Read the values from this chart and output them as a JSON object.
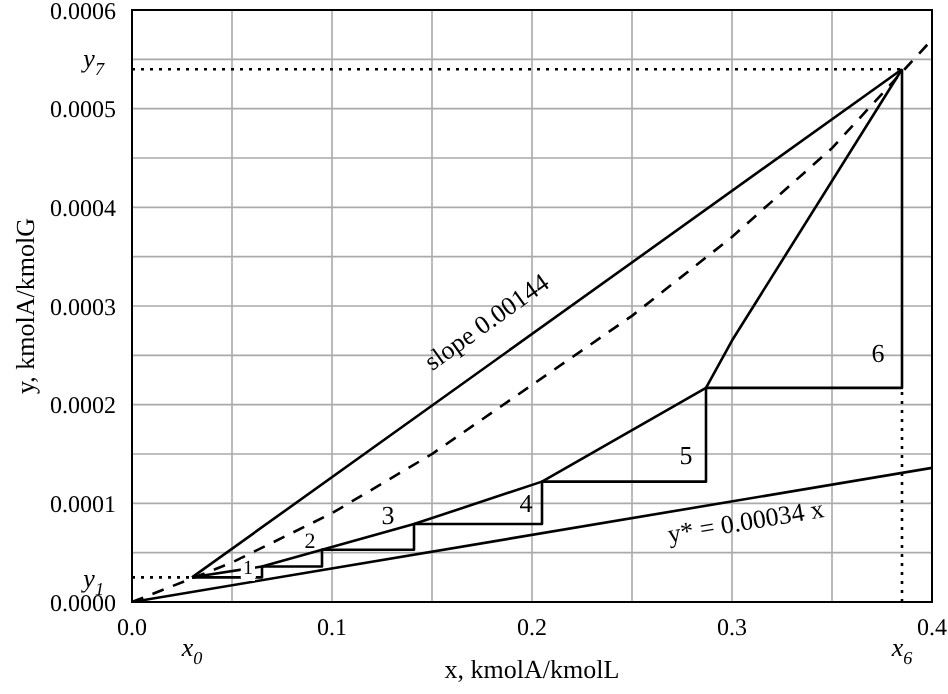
{
  "chart_data": {
    "type": "line",
    "xlabel": "x, kmolA/kmolL",
    "ylabel": "y, kmolA/kmolG",
    "xlim": [
      0,
      0.4
    ],
    "ylim": [
      0,
      0.0006
    ],
    "xticks": [
      {
        "value": 0,
        "label": "0.0"
      },
      {
        "value": 0.05,
        "label": null
      },
      {
        "value": 0.1,
        "label": "0.1"
      },
      {
        "value": 0.15,
        "label": null
      },
      {
        "value": 0.2,
        "label": "0.2"
      },
      {
        "value": 0.25,
        "label": null
      },
      {
        "value": 0.3,
        "label": "0.3"
      },
      {
        "value": 0.35,
        "label": null
      },
      {
        "value": 0.4,
        "label": "0.4"
      }
    ],
    "yticks": [
      {
        "value": 0,
        "label": "0.0000"
      },
      {
        "value": 5e-05,
        "label": null
      },
      {
        "value": 0.0001,
        "label": "0.0001"
      },
      {
        "value": 0.00015,
        "label": null
      },
      {
        "value": 0.0002,
        "label": "0.0002"
      },
      {
        "value": 0.00025,
        "label": null
      },
      {
        "value": 0.0003,
        "label": "0.0003"
      },
      {
        "value": 0.00035,
        "label": null
      },
      {
        "value": 0.0004,
        "label": "0.0004"
      },
      {
        "value": 0.00045,
        "label": null
      },
      {
        "value": 0.0005,
        "label": "0.0005"
      },
      {
        "value": 0.00055,
        "label": null
      },
      {
        "value": 0.0006,
        "label": "0.0006"
      }
    ],
    "grid": true,
    "series": [
      {
        "color": "#000000",
        "line_style": "solid",
        "x": [
          0.03,
          0.385
        ],
        "values": [
          2.5e-05,
          0.00054
        ]
      },
      {
        "color": "#000000",
        "line_style": "dashed",
        "x": [
          0,
          0.05,
          0.1,
          0.15,
          0.2,
          0.25,
          0.3,
          0.35,
          0.4
        ],
        "values": [
          0,
          4e-05,
          9e-05,
          0.00015,
          0.00022,
          0.00029,
          0.00037,
          0.00046,
          0.00057
        ]
      },
      {
        "color": "#000000",
        "line_style": "solid",
        "x": [
          0.03,
          0.065,
          0.095,
          0.141,
          0.205,
          0.287,
          0.3,
          0.385
        ],
        "values": [
          2.5e-05,
          3.6e-05,
          5.3e-05,
          7.9e-05,
          0.000122,
          0.000217,
          0.000265,
          0.00054
        ]
      },
      {
        "color": "#000000",
        "line_style": "solid",
        "x": [
          0,
          0.4
        ],
        "values": [
          0,
          0.000136
        ]
      },
      {
        "color": "#000000",
        "line_style": "solid",
        "x": [
          0.03,
          0.065,
          0.065,
          0.095,
          0.095,
          0.141,
          0.141,
          0.205,
          0.205,
          0.287,
          0.287,
          0.385,
          0.385
        ],
        "values": [
          2.5e-05,
          2.5e-05,
          3.6e-05,
          3.6e-05,
          5.3e-05,
          5.3e-05,
          7.9e-05,
          7.9e-05,
          0.000122,
          0.000122,
          0.000217,
          0.000217,
          0.00054
        ]
      },
      {
        "color": "#000000",
        "line_style": "dotted",
        "x": [
          0,
          0.385
        ],
        "values": [
          0.00054,
          0.00054
        ]
      },
      {
        "color": "#000000",
        "line_style": "dotted",
        "x": [
          0,
          0.03
        ],
        "values": [
          2.5e-05,
          2.5e-05
        ]
      },
      {
        "color": "#000000",
        "line_style": "dotted",
        "x": [
          0.385,
          0.385
        ],
        "values": [
          0,
          0.000217
        ]
      }
    ],
    "annotations": [
      "slope 0.00144",
      "y* = 0.00034 x",
      "1",
      "2",
      "3",
      "4",
      "5",
      "6",
      {
        "text": "y$_{7}$",
        "x": 0,
        "y": 0.00054
      },
      {
        "text": "y$_{1}$",
        "x": 0,
        "y": 2.5e-05
      },
      {
        "text": "x$_{0}$",
        "x": 0.03,
        "y": 0
      },
      {
        "text": "x$_{6}$",
        "x": 0.385,
        "y": 0
      }
    ]
  }
}
